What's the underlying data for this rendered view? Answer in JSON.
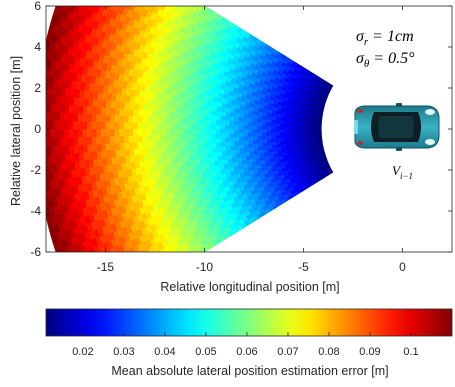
{
  "chart_data": {
    "type": "heatmap",
    "title": "",
    "xlabel": "Relative longitudinal position [m]",
    "ylabel": "Relative lateral position [m]",
    "xlim": [
      -18,
      2.5
    ],
    "ylim": [
      -6,
      6
    ],
    "xticks": [
      -15,
      -10,
      -5,
      0
    ],
    "yticks": [
      -6,
      -4,
      -2,
      0,
      2,
      4,
      6
    ],
    "grid": false,
    "coverage": {
      "shape": "annular-sector",
      "origin": [
        0,
        0
      ],
      "inner_radius": 4.1,
      "outer_radius": 18.5,
      "max_angle_deg": 31,
      "x_min": -18,
      "error_at_inner": 0.01,
      "error_at_outer": 0.11
    },
    "annotations": {
      "sigma_r": "σ_r = 1cm",
      "sigma_theta": "σ_θ = 0.5°",
      "vehicle_label": "V_{i−1}"
    },
    "colorbar": {
      "label": "Mean absolute lateral position estimation error [m]",
      "range": [
        0.011,
        0.11
      ],
      "ticks": [
        0.02,
        0.03,
        0.04,
        0.05,
        0.06,
        0.07,
        0.08,
        0.09,
        0.1
      ],
      "tick_labels": [
        "0.02",
        "0.03",
        "0.04",
        "0.05",
        "0.06",
        "0.07",
        "0.08",
        "0.09",
        "0.1"
      ],
      "colormap": "jet"
    }
  }
}
